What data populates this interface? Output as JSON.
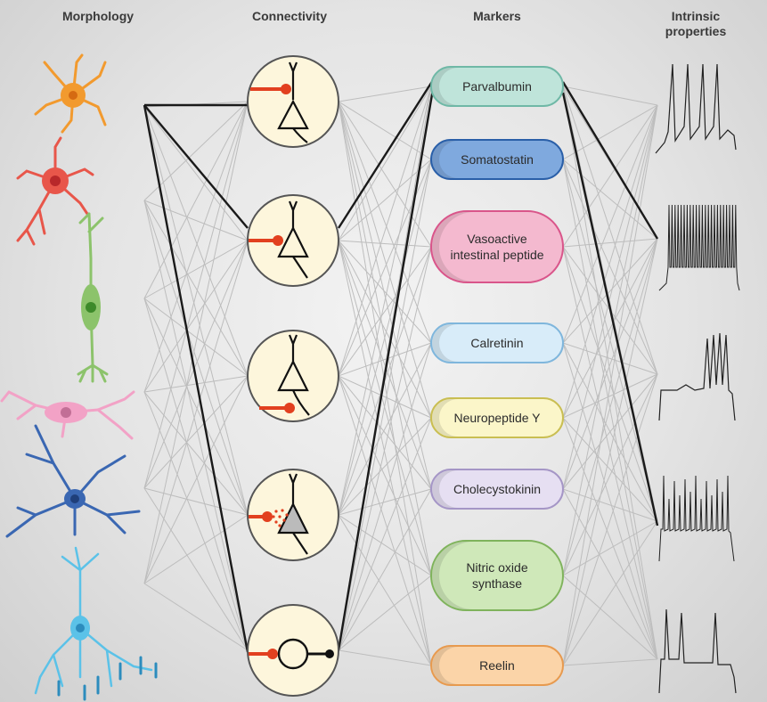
{
  "headers": {
    "morphology": "Morphology",
    "connectivity": "Connectivity",
    "markers": "Markers",
    "intrinsic_line1": "Intrinsic",
    "intrinsic_line2": "properties"
  },
  "markers": [
    {
      "label": "Parvalbumin",
      "color": "#bfe4da",
      "edge": "#6fb8a6"
    },
    {
      "label": "Somatostatin",
      "color": "#7fa9de",
      "edge": "#2a5fa8"
    },
    {
      "label": "Vasoactive intestinal peptide",
      "color": "#f4b9cf",
      "edge": "#d9558a"
    },
    {
      "label": "Calretinin",
      "color": "#d8ecf9",
      "edge": "#7fb6dc"
    },
    {
      "label": "Neuropeptide Y",
      "color": "#fbf6c9",
      "edge": "#c9be52"
    },
    {
      "label": "Cholecystokinin",
      "color": "#e6dff2",
      "edge": "#a596c6"
    },
    {
      "label": "Nitric oxide synthase",
      "color": "#cfe8b9",
      "edge": "#7fb35c"
    },
    {
      "label": "Reelin",
      "color": "#fbd4a8",
      "edge": "#e79a4f"
    }
  ],
  "connectivity_types": [
    "dendrite-targeting",
    "soma-targeting",
    "axon-initial-segment-targeting",
    "volume-transmission",
    "gap-junction"
  ],
  "morphology_colors": [
    "#f29a2e",
    "#e8564a",
    "#8cc36b",
    "#f2a2c6",
    "#3a67b2",
    "#5bc2e8"
  ],
  "line_color": "#1a1a1a",
  "accent": "#e2401f"
}
